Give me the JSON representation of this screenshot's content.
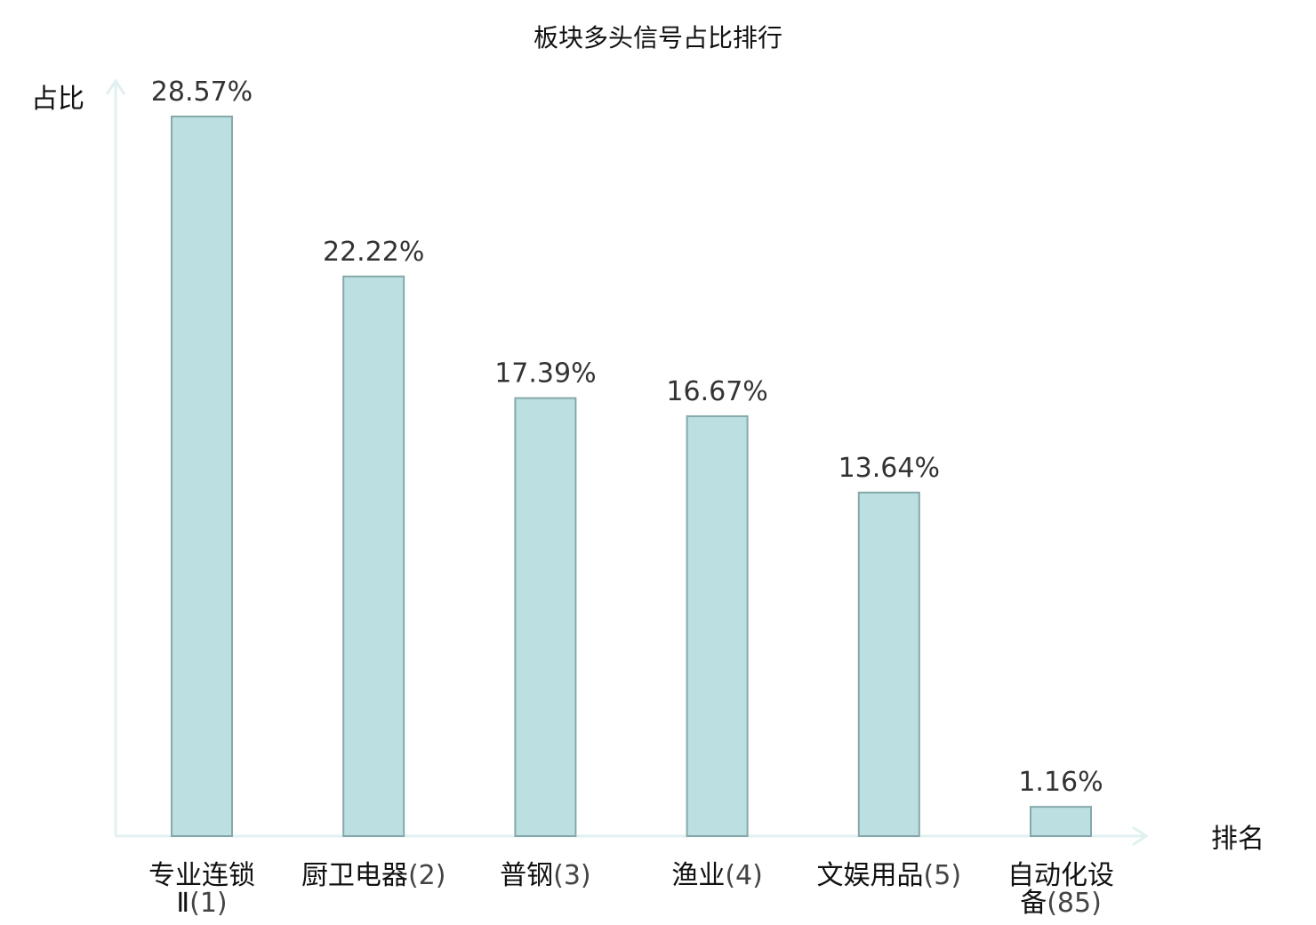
{
  "chart_data": {
    "type": "bar",
    "title": "板块多头信号占比排行",
    "ylabel": "占比",
    "xlabel": "排名",
    "ylim": [
      0,
      30
    ],
    "grid": false,
    "legend": "none",
    "categories": [
      "专业连锁Ⅱ(1)",
      "厨卫电器(2)",
      "普钢(3)",
      "渔业(4)",
      "文娱用品(5)",
      "自动化设备(85)"
    ],
    "category_names": [
      "专业连锁Ⅱ",
      "厨卫电器",
      "普钢",
      "渔业",
      "文娱用品",
      "自动化设备"
    ],
    "ranks": [
      "(1)",
      "(2)",
      "(3)",
      "(4)",
      "(5)",
      "(85)"
    ],
    "values": [
      28.57,
      22.22,
      17.39,
      16.67,
      13.64,
      1.16
    ],
    "value_labels": [
      "28.57%",
      "22.22%",
      "17.39%",
      "16.67%",
      "13.64%",
      "1.16%"
    ],
    "highlight_index": 5,
    "colors": {
      "bar_fill": "#bce0e2",
      "bar_stroke": "#86a8aa",
      "axis": "#e0f1ef",
      "highlight_text": "#e01010",
      "text": "#333333"
    }
  }
}
